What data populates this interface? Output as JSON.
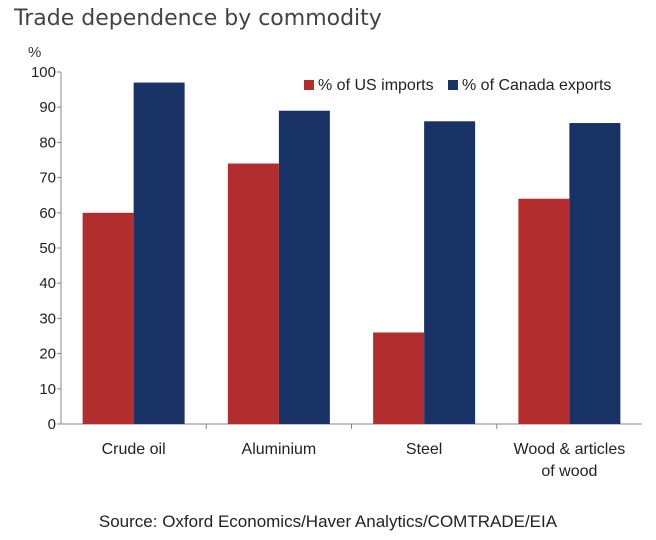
{
  "chart_data": {
    "type": "bar",
    "title": "Trade dependence by commodity",
    "ylabel": "%",
    "ylim": [
      0,
      100
    ],
    "yticks": [
      0,
      10,
      20,
      30,
      40,
      50,
      60,
      70,
      80,
      90,
      100
    ],
    "categories": [
      [
        "Crude oil"
      ],
      [
        "Aluminium"
      ],
      [
        "Steel"
      ],
      [
        "Wood & articles",
        "of wood"
      ]
    ],
    "series": [
      {
        "name": "% of US imports",
        "color": "#b22d2e",
        "values": [
          60,
          74,
          26,
          64
        ]
      },
      {
        "name": "% of Canada exports",
        "color": "#1a3366",
        "values": [
          97,
          89,
          86,
          85.5
        ]
      }
    ],
    "legend_position": "top-right",
    "source": "Source: Oxford Economics/Haver Analytics/COMTRADE/EIA"
  }
}
